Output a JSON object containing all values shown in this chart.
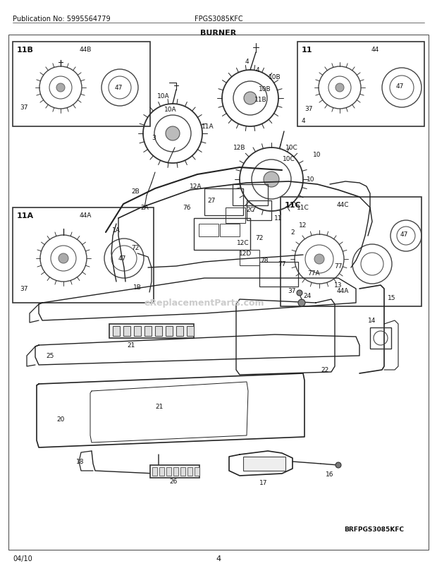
{
  "title": "BURNER",
  "pub_no": "Publication No: 5995564779",
  "model": "FPGS3085KFC",
  "date": "04/10",
  "page": "4",
  "brand_ref": "BRFPGS3085KFC",
  "watermark": "eReplacementParts.com",
  "bg_color": "#ffffff",
  "fig_w": 6.2,
  "fig_h": 8.03,
  "dpi": 100
}
